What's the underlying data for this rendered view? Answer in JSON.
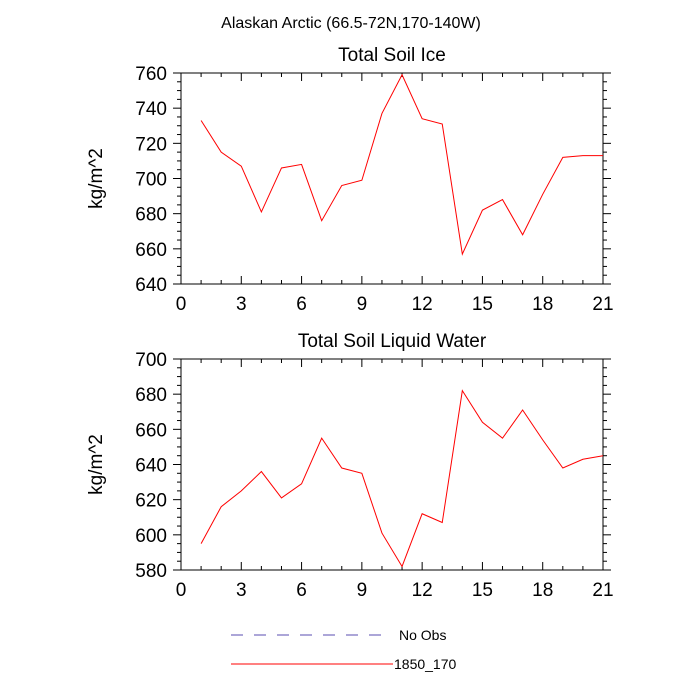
{
  "figure": {
    "title": "Alaskan Arctic (66.5-72N,170-140W)"
  },
  "chart_data": [
    {
      "type": "line",
      "title": "Total Soil Ice",
      "xlabel": "",
      "ylabel": "kg/m^2",
      "xlim": [
        0,
        21
      ],
      "ylim": [
        640,
        760
      ],
      "xticks": [
        0,
        3,
        6,
        9,
        12,
        15,
        18,
        21
      ],
      "yticks": [
        640,
        660,
        680,
        700,
        720,
        740,
        760
      ],
      "series": [
        {
          "name": "1850_170",
          "color": "#ff0000",
          "x": [
            1,
            2,
            3,
            4,
            5,
            6,
            7,
            8,
            9,
            10,
            11,
            12,
            13,
            14,
            15,
            16,
            17,
            18,
            19,
            20,
            21
          ],
          "values": [
            733,
            715,
            707,
            681,
            706,
            708,
            676,
            696,
            699,
            737,
            759,
            734,
            731,
            657,
            682,
            688,
            668,
            691,
            712,
            713,
            713
          ]
        }
      ]
    },
    {
      "type": "line",
      "title": "Total Soil Liquid Water",
      "xlabel": "",
      "ylabel": "kg/m^2",
      "xlim": [
        0,
        21
      ],
      "ylim": [
        580,
        700
      ],
      "xticks": [
        0,
        3,
        6,
        9,
        12,
        15,
        18,
        21
      ],
      "yticks": [
        580,
        600,
        620,
        640,
        660,
        680,
        700
      ],
      "series": [
        {
          "name": "1850_170",
          "color": "#ff0000",
          "x": [
            1,
            2,
            3,
            4,
            5,
            6,
            7,
            8,
            9,
            10,
            11,
            12,
            13,
            14,
            15,
            16,
            17,
            18,
            19,
            20,
            21
          ],
          "values": [
            595,
            616,
            625,
            636,
            621,
            629,
            655,
            638,
            635,
            601,
            582,
            612,
            607,
            682,
            664,
            655,
            671,
            654,
            638,
            643,
            645
          ]
        }
      ]
    }
  ],
  "legend": {
    "items": [
      {
        "label": "No Obs",
        "color": "#5a4db0",
        "style": "dashed"
      },
      {
        "label": "1850_170",
        "color": "#ff0000",
        "style": "solid"
      }
    ]
  }
}
